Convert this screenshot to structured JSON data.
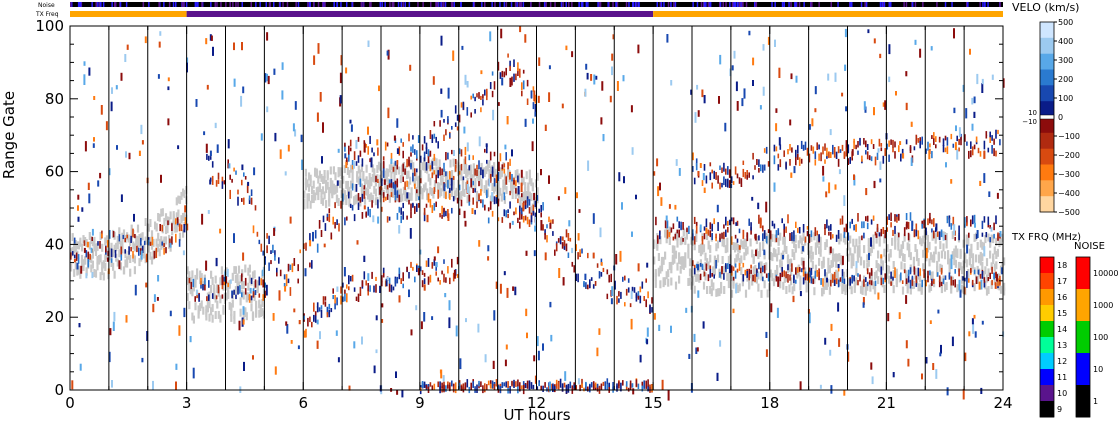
{
  "chart_data": {
    "type": "heatmap",
    "xlabel": "UT hours",
    "ylabel": "Range Gate",
    "xlim": [
      0,
      24
    ],
    "ylim": [
      0,
      100
    ],
    "x_ticks": [
      0,
      3,
      6,
      9,
      12,
      15,
      18,
      21,
      24
    ],
    "y_ticks": [
      0,
      20,
      40,
      60,
      80,
      100
    ],
    "scan_boundaries": [
      1,
      2,
      3,
      4,
      5,
      6,
      7,
      8,
      9,
      10,
      11,
      12,
      13,
      14,
      15,
      16,
      17,
      18,
      19,
      20,
      21,
      22,
      23
    ],
    "top_strips": {
      "noise_label": "Noise",
      "txfreq_label": "TX Freq",
      "txfreq_segments": [
        {
          "start": 0,
          "end": 3,
          "color": "#ffa500"
        },
        {
          "start": 3,
          "end": 15,
          "color": "#5a148c"
        },
        {
          "start": 15,
          "end": 24,
          "color": "#ffa500"
        }
      ]
    },
    "scatter_bands": [
      {
        "name": "ground-scatter-early",
        "kind": "ground",
        "points": [
          [
            0,
            36
          ],
          [
            1.5,
            38
          ],
          [
            2.5,
            44
          ],
          [
            3,
            50
          ]
        ],
        "width": 6
      },
      {
        "name": "ground-scatter-3-5",
        "kind": "ground",
        "points": [
          [
            3,
            26
          ],
          [
            4,
            26
          ],
          [
            5,
            27
          ]
        ],
        "width": 7
      },
      {
        "name": "ground-scatter-late",
        "kind": "ground",
        "points": [
          [
            15,
            37
          ],
          [
            17,
            34
          ],
          [
            20,
            35
          ],
          [
            24,
            35
          ]
        ],
        "width": 8
      },
      {
        "name": "ground-scatter-mid",
        "kind": "ground",
        "points": [
          [
            6,
            55
          ],
          [
            9,
            58
          ],
          [
            11,
            57
          ],
          [
            12,
            54
          ]
        ],
        "width": 5
      },
      {
        "name": "ionospheric-early",
        "kind": "iono",
        "points": [
          [
            0,
            38
          ],
          [
            2,
            40
          ],
          [
            3,
            45
          ]
        ],
        "width": 4
      },
      {
        "name": "ionospheric-arc",
        "kind": "iono",
        "points": [
          [
            3.5,
            60
          ],
          [
            4.5,
            55
          ],
          [
            5,
            40
          ],
          [
            5.5,
            30
          ],
          [
            6,
            35
          ],
          [
            7,
            50
          ],
          [
            9,
            60
          ],
          [
            11,
            62
          ],
          [
            12,
            48
          ],
          [
            13,
            35
          ],
          [
            14,
            28
          ],
          [
            15,
            25
          ]
        ],
        "width": 5
      },
      {
        "name": "ionospheric-rising",
        "kind": "iono",
        "points": [
          [
            6,
            18
          ],
          [
            7,
            27
          ],
          [
            8,
            30
          ],
          [
            9,
            32
          ],
          [
            10,
            33
          ]
        ],
        "width": 3
      },
      {
        "name": "ionospheric-3-5",
        "kind": "iono",
        "points": [
          [
            3,
            28
          ],
          [
            5,
            28
          ]
        ],
        "width": 3
      },
      {
        "name": "ionospheric-upper",
        "kind": "iono",
        "points": [
          [
            7,
            65
          ],
          [
            9,
            66
          ],
          [
            10.5,
            80
          ],
          [
            11.2,
            90
          ],
          [
            12,
            80
          ]
        ],
        "width": 4
      },
      {
        "name": "ionospheric-high",
        "kind": "iono",
        "points": [
          [
            8,
            50
          ],
          [
            10,
            52
          ],
          [
            11,
            50
          ],
          [
            12,
            47
          ]
        ],
        "width": 4
      },
      {
        "name": "ionospheric-late-a",
        "kind": "iono",
        "points": [
          [
            15,
            44
          ],
          [
            18,
            44
          ],
          [
            21,
            45
          ],
          [
            24,
            44
          ]
        ],
        "width": 3
      },
      {
        "name": "ionospheric-late-b",
        "kind": "iono",
        "points": [
          [
            16,
            33
          ],
          [
            20,
            31
          ],
          [
            24,
            31
          ]
        ],
        "width": 2
      },
      {
        "name": "ionospheric-late-c",
        "kind": "iono",
        "points": [
          [
            16,
            60
          ],
          [
            17,
            58
          ],
          [
            18,
            64
          ],
          [
            21,
            66
          ],
          [
            24,
            68
          ]
        ],
        "width": 3
      },
      {
        "name": "near-range-scatter",
        "kind": "iono",
        "points": [
          [
            9,
            1
          ],
          [
            15,
            1
          ]
        ],
        "width": 1
      }
    ],
    "velocity_scale": {
      "title": "VELO (km/s)",
      "ticks": [
        500,
        400,
        300,
        200,
        100,
        0,
        -100,
        -200,
        -300,
        -400,
        -500
      ],
      "zero_labels": [
        "10",
        "−10"
      ],
      "colors": [
        "#cfe6ff",
        "#9ccaf0",
        "#58a8e8",
        "#2a7ad0",
        "#1848b0",
        "#0a1c88",
        "#8c0c0c",
        "#b02a10",
        "#d84a10",
        "#ff7a10",
        "#ffa64a",
        "#ffd6a0"
      ]
    },
    "txfreq_scale": {
      "title": "TX FRQ (MHz)",
      "ticks": [
        18,
        17,
        16,
        15,
        14,
        13,
        12,
        11,
        10,
        9
      ],
      "colors": [
        "#ff0000",
        "#ff4400",
        "#ff9900",
        "#ffcc00",
        "#00cc00",
        "#00ff99",
        "#00ccff",
        "#0000ff",
        "#5a148c",
        "#000000"
      ]
    },
    "noise_scale": {
      "title": "NOISE",
      "ticks": [
        "10000",
        "1000",
        "100",
        "10",
        "1"
      ],
      "colors": [
        "#ff0000",
        "#ffa500",
        "#00cc00",
        "#0000ff",
        "#000000"
      ]
    }
  }
}
